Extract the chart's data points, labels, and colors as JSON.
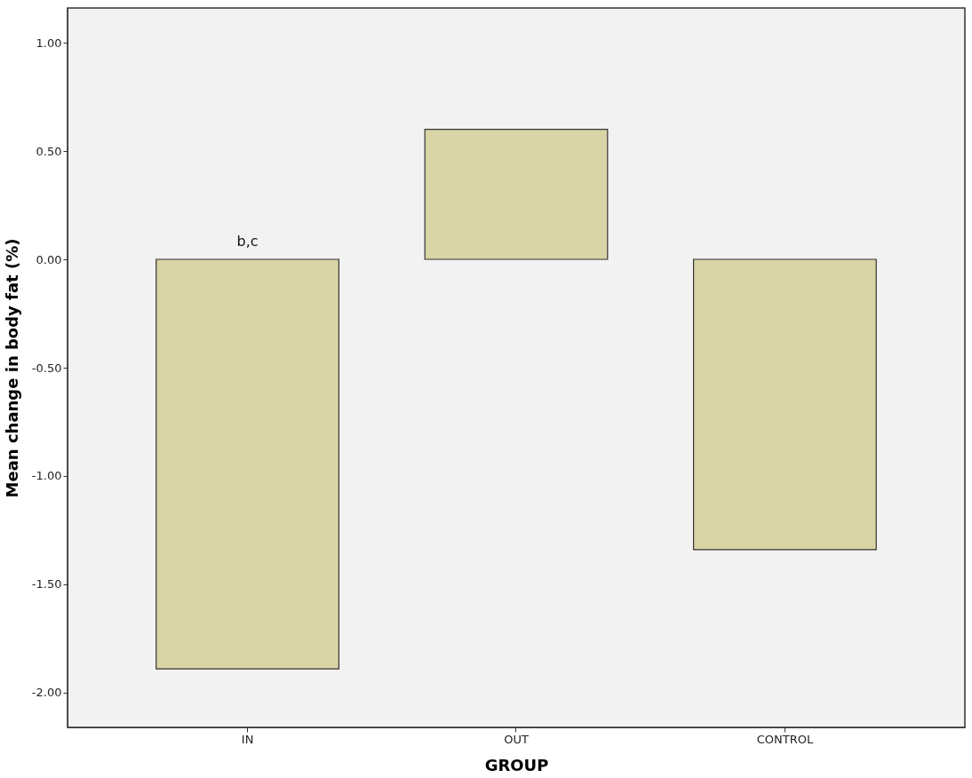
{
  "chart_data": {
    "type": "bar",
    "xlabel": "GROUP",
    "ylabel": "Mean change in body fat (%)",
    "categories": [
      "IN",
      "OUT",
      "CONTROL"
    ],
    "values": [
      -1.89,
      0.6,
      -1.34
    ],
    "color": "#d9d4a6",
    "ylim": [
      -2.16,
      1.16
    ],
    "yticks": [
      {
        "value": -2,
        "label": "-2.00"
      },
      {
        "value": -1.5,
        "label": "-1.50"
      },
      {
        "value": -1,
        "label": "-1.00"
      },
      {
        "value": -0.5,
        "label": "-0.50"
      },
      {
        "value": 0,
        "label": "0.00"
      },
      {
        "value": 0.5,
        "label": "0.50"
      },
      {
        "value": 1,
        "label": "1.00"
      }
    ],
    "annotations": [
      "b,c"
    ],
    "grid": false
  }
}
